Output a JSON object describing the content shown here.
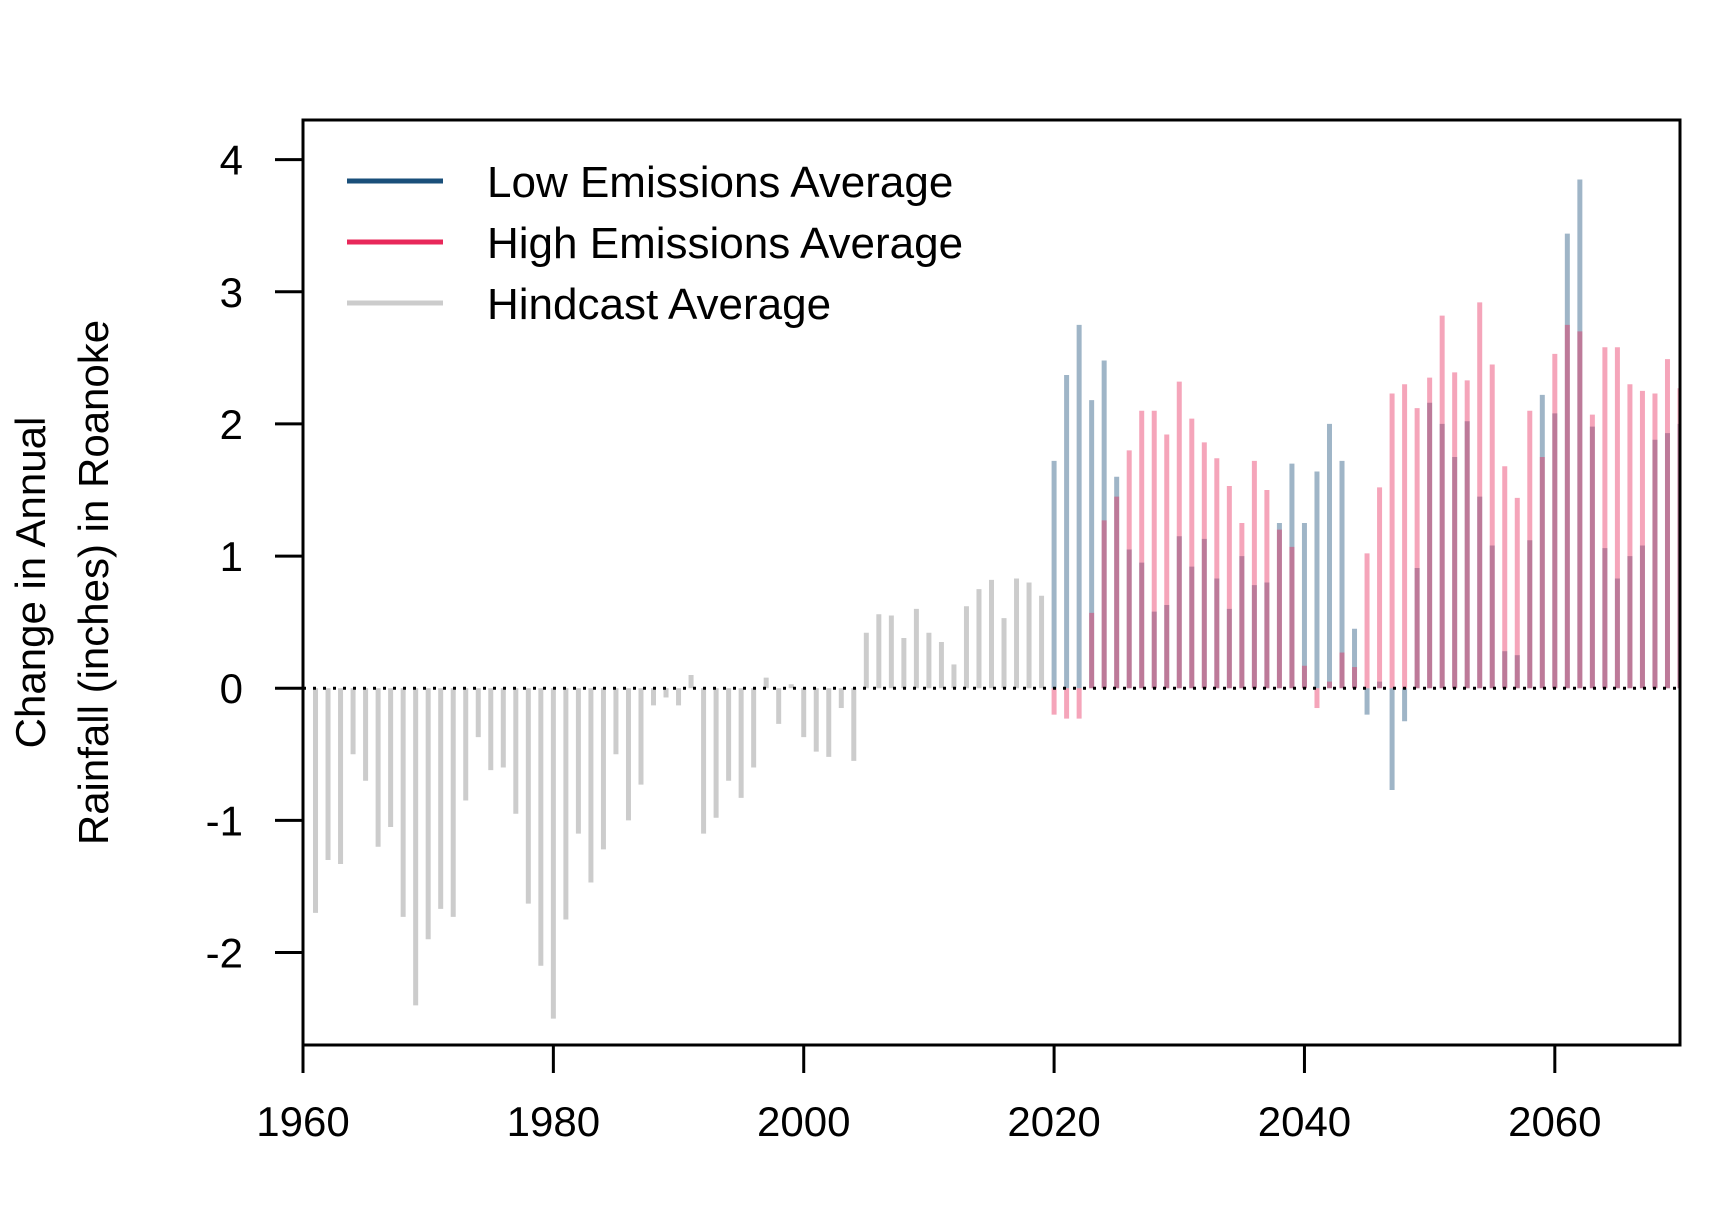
{
  "chart_data": {
    "type": "bar",
    "ylabel": [
      "Change in Annual",
      "Rainfall (inches) in Roanoke"
    ],
    "xlim": [
      1960,
      2070
    ],
    "ylim": [
      -2.7,
      4.3
    ],
    "x_ticks": [
      1960,
      1980,
      2000,
      2020,
      2040,
      2060
    ],
    "x_tick_labels": [
      "1960",
      "1980",
      "2000",
      "2020",
      "2040",
      "2060"
    ],
    "y_ticks": [
      -2,
      -1,
      0,
      1,
      2,
      3,
      4
    ],
    "y_tick_labels": [
      "-2",
      "-1",
      "0",
      "1",
      "2",
      "3",
      "4"
    ],
    "reference_line": 0,
    "legend": {
      "position": "top-left",
      "entries": [
        {
          "label": "Low Emissions Average",
          "color": "#1a4f7a"
        },
        {
          "label": "High Emissions Average",
          "color": "#e8285a"
        },
        {
          "label": "Hindcast Average",
          "color": "#cccccc"
        }
      ]
    },
    "series": [
      {
        "key": "hindcast",
        "color": "#cccccc",
        "x": [
          1961,
          1962,
          1963,
          1964,
          1965,
          1966,
          1967,
          1968,
          1969,
          1970,
          1971,
          1972,
          1973,
          1974,
          1975,
          1976,
          1977,
          1978,
          1979,
          1980,
          1981,
          1982,
          1983,
          1984,
          1985,
          1986,
          1987,
          1988,
          1989,
          1990,
          1991,
          1992,
          1993,
          1994,
          1995,
          1996,
          1997,
          1998,
          1999,
          2000,
          2001,
          2002,
          2003,
          2004,
          2005,
          2006,
          2007,
          2008,
          2009,
          2010,
          2011,
          2012,
          2013,
          2014,
          2015,
          2016,
          2017,
          2018,
          2019
        ],
        "values": [
          -1.7,
          -1.3,
          -1.33,
          -0.5,
          -0.7,
          -1.2,
          -1.05,
          -1.73,
          -2.4,
          -1.9,
          -1.67,
          -1.73,
          -0.85,
          -0.37,
          -0.62,
          -0.6,
          -0.95,
          -1.63,
          -2.1,
          -2.5,
          -1.75,
          -1.1,
          -1.47,
          -1.22,
          -0.5,
          -1.0,
          -0.73,
          -0.13,
          -0.07,
          -0.13,
          0.1,
          -1.1,
          -0.98,
          -0.7,
          -0.83,
          -0.6,
          0.08,
          -0.27,
          0.03,
          -0.37,
          -0.48,
          -0.52,
          -0.15,
          -0.55,
          0.42,
          0.56,
          0.55,
          0.38,
          0.6,
          0.42,
          0.35,
          0.18,
          0.62,
          0.75,
          0.82,
          0.53,
          0.83,
          0.8,
          0.7
        ]
      },
      {
        "key": "high",
        "color": "#e8285a",
        "x": [
          2020,
          2021,
          2022,
          2023,
          2024,
          2025,
          2026,
          2027,
          2028,
          2029,
          2030,
          2031,
          2032,
          2033,
          2034,
          2035,
          2036,
          2037,
          2038,
          2039,
          2040,
          2041,
          2042,
          2043,
          2044,
          2045,
          2046,
          2047,
          2048,
          2049,
          2050,
          2051,
          2052,
          2053,
          2054,
          2055,
          2056,
          2057,
          2058,
          2059,
          2060,
          2061,
          2062,
          2063,
          2064,
          2065,
          2066,
          2067,
          2068,
          2069,
          2070
        ],
        "values": [
          -0.2,
          -0.23,
          -0.23,
          0.57,
          1.27,
          1.45,
          1.8,
          2.1,
          2.1,
          1.92,
          2.32,
          2.04,
          1.86,
          1.74,
          1.53,
          1.25,
          1.72,
          1.5,
          1.2,
          1.07,
          0.17,
          -0.15,
          0.05,
          0.27,
          0.16,
          1.02,
          1.52,
          2.23,
          2.3,
          2.12,
          2.35,
          2.82,
          2.39,
          2.33,
          2.92,
          2.45,
          1.68,
          1.44,
          2.1,
          1.75,
          2.53,
          2.75,
          2.7,
          2.07,
          2.58,
          2.58,
          2.3,
          2.25,
          2.23,
          2.49,
          2.27
        ]
      },
      {
        "key": "low",
        "color": "#1a4f7a",
        "x": [
          2020,
          2021,
          2022,
          2023,
          2024,
          2025,
          2026,
          2027,
          2028,
          2029,
          2030,
          2031,
          2032,
          2033,
          2034,
          2035,
          2036,
          2037,
          2038,
          2039,
          2040,
          2041,
          2042,
          2043,
          2044,
          2045,
          2046,
          2047,
          2048,
          2049,
          2050,
          2051,
          2052,
          2053,
          2054,
          2055,
          2056,
          2057,
          2058,
          2059,
          2060,
          2061,
          2062,
          2063,
          2064,
          2065,
          2066,
          2067,
          2068,
          2069,
          2070
        ],
        "values": [
          1.72,
          2.37,
          2.75,
          2.18,
          2.48,
          1.6,
          1.05,
          0.95,
          0.58,
          0.63,
          1.15,
          0.92,
          1.13,
          0.83,
          0.6,
          1.0,
          0.78,
          0.8,
          1.25,
          1.7,
          1.25,
          1.64,
          2.0,
          1.72,
          0.45,
          -0.2,
          0.05,
          -0.77,
          -0.25,
          0.91,
          2.16,
          2.0,
          1.75,
          2.02,
          1.45,
          1.08,
          0.28,
          0.25,
          1.12,
          2.22,
          2.08,
          3.44,
          3.85,
          1.98,
          1.06,
          0.83,
          1.0,
          1.08,
          1.88,
          1.93,
          2.0
        ]
      }
    ]
  }
}
